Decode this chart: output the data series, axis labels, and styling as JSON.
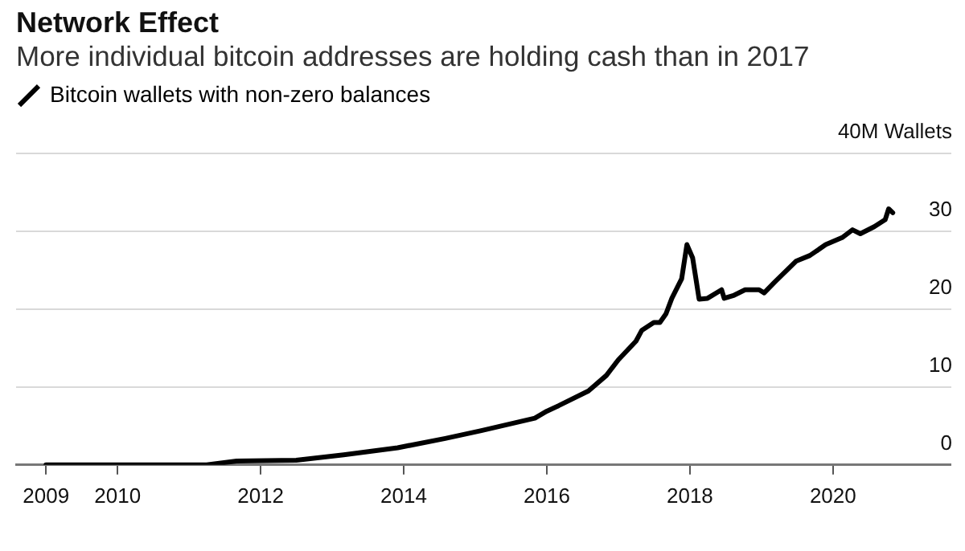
{
  "chart_data": {
    "type": "line",
    "title": "Network Effect",
    "subtitle": "More individual bitcoin addresses are holding cash than in 2017",
    "x": [
      "2009-01",
      "2010-01",
      "2011-01",
      "2011-04",
      "2011-09",
      "2012-07",
      "2013-03",
      "2013-12",
      "2014-08",
      "2015-02",
      "2015-11",
      "2016-01",
      "2016-03",
      "2016-08",
      "2016-11",
      "2017-01",
      "2017-04",
      "2017-05",
      "2017-07",
      "2017-08",
      "2017-09",
      "2017-10",
      "2017-11-20",
      "2017-12-17",
      "2018-01-15",
      "2018-02-01",
      "2018-02-17",
      "2018-04",
      "2018-06-12",
      "2018-06-25",
      "2018-08-15",
      "2018-10-10",
      "2018-12-20",
      "2019-01-15",
      "2019-03-10",
      "2019-06-28",
      "2019-09-05",
      "2019-11-25",
      "2020-02-17",
      "2020-04-10",
      "2020-05-20",
      "2020-07-30",
      "2020-09-24",
      "2020-10-12",
      "2020-11-02"
    ],
    "series": [
      {
        "name": "Bitcoin wallets with non-zero balances",
        "color": "#000000",
        "values": [
          0,
          0,
          0,
          0,
          0.5,
          0.6,
          1.3,
          2.2,
          3.4,
          4.4,
          6.0,
          6.9,
          7.6,
          9.5,
          11.5,
          13.5,
          15.9,
          17.3,
          18.3,
          18.3,
          19.4,
          21.4,
          23.9,
          28.3,
          26.6,
          23.9,
          21.3,
          21.4,
          22.5,
          21.4,
          21.8,
          22.5,
          22.5,
          22.1,
          23.5,
          26.2,
          26.9,
          28.3,
          29.2,
          30.2,
          29.7,
          30.6,
          31.5,
          32.9,
          32.4
        ]
      }
    ],
    "xlim": [
      "2008-08",
      "2021-09"
    ],
    "xticks": [
      "2009",
      "2010",
      "2012",
      "2014",
      "2016",
      "2018",
      "2020"
    ],
    "ylim": [
      0,
      40
    ],
    "yticks": [
      0,
      10,
      20,
      30,
      {
        "value": 40,
        "label": "40M Wallets"
      }
    ],
    "grid": "y",
    "legend": "top left"
  }
}
